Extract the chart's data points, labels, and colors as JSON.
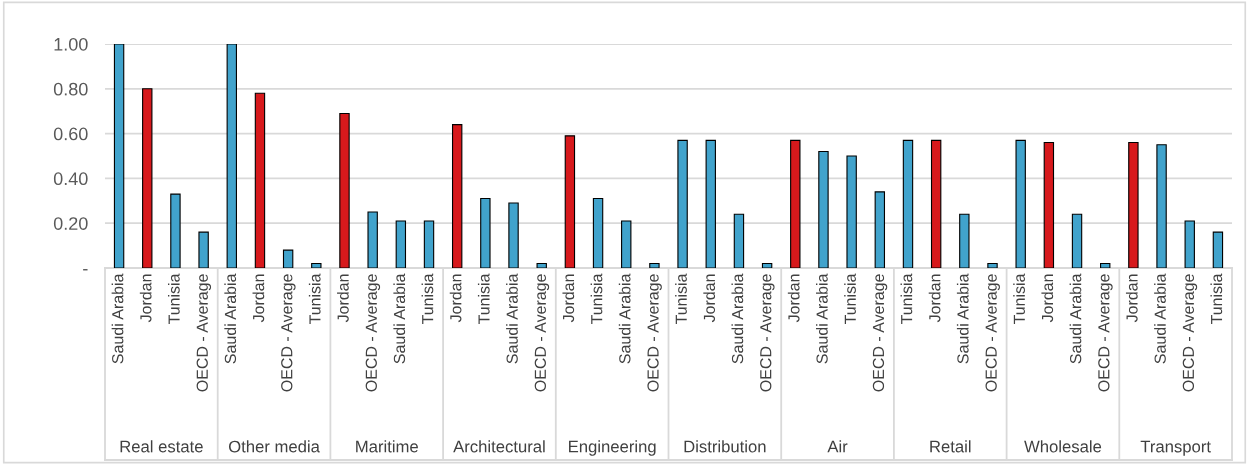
{
  "chart_data": {
    "type": "bar",
    "categories": [
      "Saudi Arabia",
      "Jordan",
      "Tunisia",
      "OECD - Average",
      "Saudi Arabia",
      "Jordan",
      "OECD - Average",
      "Tunisia",
      "Jordan",
      "OECD - Average",
      "Saudi Arabia",
      "Tunisia",
      "Jordan",
      "Tunisia",
      "Saudi Arabia",
      "OECD - Average",
      "Jordan",
      "Tunisia",
      "Saudi Arabia",
      "OECD - Average",
      "Tunisia",
      "Jordan",
      "Saudi Arabia",
      "OECD - Average",
      "Jordan",
      "Saudi Arabia",
      "Tunisia",
      "OECD - Average",
      "Tunisia",
      "Jordan",
      "Saudi Arabia",
      "OECD - Average",
      "Tunisia",
      "Jordan",
      "Saudi Arabia",
      "OECD - Average",
      "Jordan",
      "Saudi Arabia",
      "OECD - Average",
      "Tunisia"
    ],
    "values": [
      1.0,
      0.8,
      0.33,
      0.16,
      1.0,
      0.78,
      0.08,
      0.02,
      0.69,
      0.25,
      0.21,
      0.21,
      0.64,
      0.31,
      0.29,
      0.02,
      0.59,
      0.31,
      0.21,
      0.02,
      0.57,
      0.57,
      0.24,
      0.02,
      0.57,
      0.52,
      0.5,
      0.34,
      0.57,
      0.57,
      0.24,
      0.02,
      0.57,
      0.56,
      0.24,
      0.02,
      0.56,
      0.55,
      0.21,
      0.16
    ],
    "colors": [
      "#41a3cc",
      "#d7191c",
      "#41a3cc",
      "#41a3cc",
      "#41a3cc",
      "#d7191c",
      "#41a3cc",
      "#41a3cc",
      "#d7191c",
      "#41a3cc",
      "#41a3cc",
      "#41a3cc",
      "#d7191c",
      "#41a3cc",
      "#41a3cc",
      "#41a3cc",
      "#d7191c",
      "#41a3cc",
      "#41a3cc",
      "#41a3cc",
      "#41a3cc",
      "#41a3cc",
      "#41a3cc",
      "#41a3cc",
      "#d7191c",
      "#41a3cc",
      "#41a3cc",
      "#41a3cc",
      "#41a3cc",
      "#d7191c",
      "#41a3cc",
      "#41a3cc",
      "#41a3cc",
      "#d7191c",
      "#41a3cc",
      "#41a3cc",
      "#d7191c",
      "#41a3cc",
      "#41a3cc",
      "#41a3cc"
    ],
    "annotations": [
      "Real estate",
      "Other media",
      "Maritime",
      "Architectural",
      "Engineering",
      "Distribution",
      "Air",
      "Retail",
      "Wholesale",
      "Transport"
    ],
    "ylim": [
      0,
      1.0
    ],
    "yticks": [
      {
        "value": 0,
        "label": "-"
      },
      {
        "value": 0.2,
        "label": "0.20"
      },
      {
        "value": 0.4,
        "label": "0.40"
      },
      {
        "value": 0.6,
        "label": "0.60"
      },
      {
        "value": 0.8,
        "label": "0.80"
      },
      {
        "value": 1.0,
        "label": "1.00"
      }
    ],
    "grid": "y",
    "legend": false
  }
}
